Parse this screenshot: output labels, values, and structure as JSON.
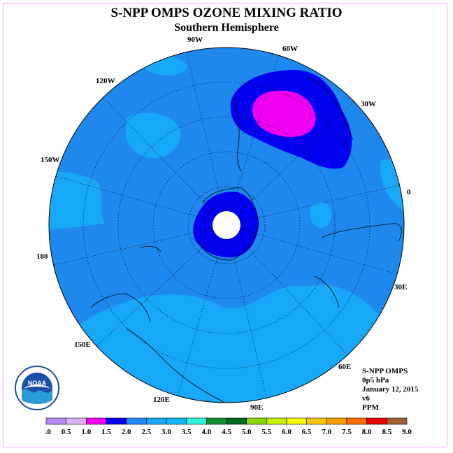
{
  "title": "S-NPP OMPS OZONE MIXING RATIO",
  "subtitle": "Southern Hemisphere",
  "info": {
    "instrument": "S-NPP OMPS",
    "level": "0p5 hPa",
    "date": "January 12, 2015",
    "version": "v6",
    "units": "PPM"
  },
  "longitude_labels": [
    "90W",
    "60W",
    "30W",
    "0",
    "30E",
    "60E",
    "90E",
    "120E",
    "150E",
    "180",
    "150W",
    "120W"
  ],
  "logo_text": "NOAA",
  "colors": {
    "background_field": "#1e88ee",
    "light_region": "#18a8f8",
    "dark_region": "#0000f0",
    "high_region": "#f000f0",
    "frame": "#f0a8f0"
  },
  "colorbar": {
    "ticks": [
      "0.0",
      "0.5",
      "1.0",
      "1.5",
      "2.0",
      "2.5",
      "3.0",
      "3.5",
      "4.0",
      "4.5",
      "5.0",
      "5.5",
      "6.0",
      "6.5",
      "7.0",
      "7.5",
      "8.0",
      "8.5",
      "9.0"
    ],
    "colors": [
      "#b88cf0",
      "#dcb4f4",
      "#f000f0",
      "#0000f0",
      "#1e88ee",
      "#18a8f8",
      "#12b8f8",
      "#30f0e0",
      "#109030",
      "#006820",
      "#88d800",
      "#c8f000",
      "#f8f800",
      "#f8c800",
      "#f8a000",
      "#f87000",
      "#f00000",
      "#a06038"
    ]
  }
}
